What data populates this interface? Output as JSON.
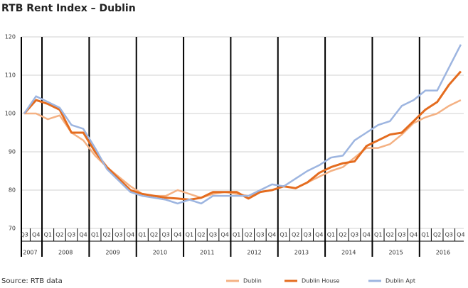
{
  "chart_data": {
    "type": "line",
    "title": "RTB Rent Index – Dublin",
    "source": "Source: RTB data",
    "categories": [
      "Q3",
      "Q4",
      "Q1",
      "Q2",
      "Q3",
      "Q4",
      "Q1",
      "Q2",
      "Q3",
      "Q4",
      "Q1",
      "Q2",
      "Q3",
      "Q4",
      "Q1",
      "Q2",
      "Q3",
      "Q4",
      "Q1",
      "Q2",
      "Q3",
      "Q4",
      "Q1",
      "Q2",
      "Q3",
      "Q4",
      "Q1",
      "Q2",
      "Q3",
      "Q4",
      "Q1",
      "Q2",
      "Q3",
      "Q4",
      "Q1",
      "Q2",
      "Q3",
      "Q4"
    ],
    "years": [
      "2007",
      "2008",
      "2009",
      "2010",
      "2011",
      "2012",
      "2013",
      "2014",
      "2015",
      "2016"
    ],
    "series": [
      {
        "name": "Dublin",
        "color": "#f4b183",
        "values": [
          100,
          100,
          98.5,
          99.5,
          95,
          93,
          89,
          86,
          83.5,
          81,
          79,
          78.5,
          78.5,
          80,
          79,
          78,
          79,
          79.5,
          79,
          78.5,
          79.5,
          80,
          81,
          80.5,
          82,
          83.5,
          85,
          86,
          88.5,
          91,
          91,
          92,
          94.5,
          97.5,
          99,
          100,
          102,
          103.5
        ]
      },
      {
        "name": "Dublin House",
        "color": "#e46c1f",
        "values": [
          100,
          103.5,
          102.5,
          101,
          95,
          95,
          90,
          86,
          83,
          80,
          79,
          78.5,
          78,
          77.8,
          77.5,
          78,
          79.5,
          79.5,
          79.5,
          77.8,
          79.5,
          80,
          81,
          80.5,
          82,
          84.5,
          86,
          87,
          87.5,
          91.5,
          93,
          94.5,
          95,
          98,
          101,
          103,
          107.5,
          111
        ]
      },
      {
        "name": "Dublin Apt",
        "color": "#9db5e0",
        "values": [
          100,
          104.5,
          103,
          101.5,
          97,
          96,
          91,
          85.5,
          82.5,
          79.5,
          78.5,
          78,
          77.5,
          76.5,
          77.5,
          76.5,
          78.5,
          78.5,
          78.5,
          78.5,
          80,
          81.5,
          81,
          83,
          85,
          86.5,
          88.5,
          89,
          93,
          95,
          97,
          98,
          102,
          103.5,
          106,
          106,
          112,
          118
        ]
      }
    ],
    "ylim": [
      70,
      120
    ],
    "yticks": [
      70,
      80,
      90,
      100,
      110,
      120
    ],
    "grid": true,
    "legend": "bottom-right"
  }
}
